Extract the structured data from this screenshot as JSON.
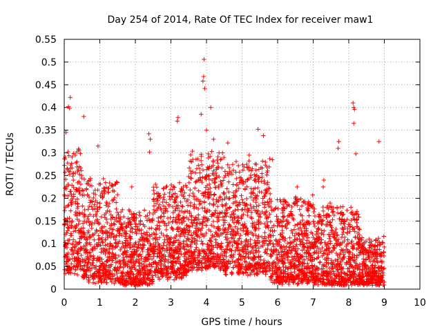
{
  "chart_data": {
    "type": "scatter",
    "title": "Day 254 of 2014, Rate Of TEC Index for receiver maw1",
    "xlabel": "GPS time / hours",
    "ylabel": "ROTI / TECUs",
    "xlim": [
      0,
      10
    ],
    "ylim": [
      0,
      0.55
    ],
    "xticks": [
      "0",
      "1",
      "2",
      "3",
      "4",
      "5",
      "6",
      "7",
      "8",
      "9",
      "10"
    ],
    "yticks": [
      "0",
      "0.05",
      "0.1",
      "0.15",
      "0.2",
      "0.25",
      "0.3",
      "0.35",
      "0.4",
      "0.45",
      "0.5",
      "0.55"
    ],
    "grid": true,
    "marker": "plus",
    "series_color": "#ff0000",
    "density_profile": {
      "x_range": [
        0,
        9
      ],
      "bands": [
        {
          "x": [
            0.0,
            0.5
          ],
          "base": 0.04,
          "spread": 0.26
        },
        {
          "x": [
            0.5,
            1.5
          ],
          "base": 0.02,
          "spread": 0.22
        },
        {
          "x": [
            1.5,
            2.5
          ],
          "base": 0.01,
          "spread": 0.16
        },
        {
          "x": [
            2.5,
            3.5
          ],
          "base": 0.03,
          "spread": 0.2
        },
        {
          "x": [
            3.5,
            4.5
          ],
          "base": 0.05,
          "spread": 0.25
        },
        {
          "x": [
            4.5,
            5.8
          ],
          "base": 0.04,
          "spread": 0.24
        },
        {
          "x": [
            5.8,
            7.0
          ],
          "base": 0.02,
          "spread": 0.18
        },
        {
          "x": [
            7.0,
            8.3
          ],
          "base": 0.01,
          "spread": 0.17
        },
        {
          "x": [
            8.3,
            9.0
          ],
          "base": 0.01,
          "spread": 0.1
        }
      ],
      "point_count": 4200
    },
    "notable_points": [
      {
        "x": 3.93,
        "y": 0.506
      },
      {
        "x": 3.92,
        "y": 0.468
      },
      {
        "x": 3.9,
        "y": 0.458
      },
      {
        "x": 3.95,
        "y": 0.442
      },
      {
        "x": 0.17,
        "y": 0.422
      },
      {
        "x": 0.12,
        "y": 0.402
      },
      {
        "x": 0.15,
        "y": 0.398
      },
      {
        "x": 8.12,
        "y": 0.41
      },
      {
        "x": 8.14,
        "y": 0.4
      },
      {
        "x": 8.16,
        "y": 0.396
      },
      {
        "x": 4.12,
        "y": 0.4
      },
      {
        "x": 3.85,
        "y": 0.385
      },
      {
        "x": 8.14,
        "y": 0.365
      },
      {
        "x": 0.55,
        "y": 0.38
      },
      {
        "x": 3.2,
        "y": 0.378
      },
      {
        "x": 3.18,
        "y": 0.37
      },
      {
        "x": 2.38,
        "y": 0.342
      },
      {
        "x": 2.42,
        "y": 0.33
      },
      {
        "x": 5.45,
        "y": 0.352
      },
      {
        "x": 8.85,
        "y": 0.325
      },
      {
        "x": 7.72,
        "y": 0.325
      },
      {
        "x": 7.7,
        "y": 0.31
      },
      {
        "x": 4.6,
        "y": 0.322
      },
      {
        "x": 2.4,
        "y": 0.302
      },
      {
        "x": 8.2,
        "y": 0.298
      },
      {
        "x": 0.95,
        "y": 0.315
      },
      {
        "x": 0.05,
        "y": 0.345
      },
      {
        "x": 7.3,
        "y": 0.24
      },
      {
        "x": 7.28,
        "y": 0.225
      },
      {
        "x": 6.55,
        "y": 0.225
      },
      {
        "x": 1.9,
        "y": 0.225
      },
      {
        "x": 5.85,
        "y": 0.285
      },
      {
        "x": 5.2,
        "y": 0.295
      },
      {
        "x": 5.6,
        "y": 0.338
      },
      {
        "x": 4.45,
        "y": 0.3
      },
      {
        "x": 4.2,
        "y": 0.33
      },
      {
        "x": 4.0,
        "y": 0.35
      },
      {
        "x": 8.3,
        "y": 0.012
      },
      {
        "x": 8.95,
        "y": 0.018
      }
    ]
  }
}
